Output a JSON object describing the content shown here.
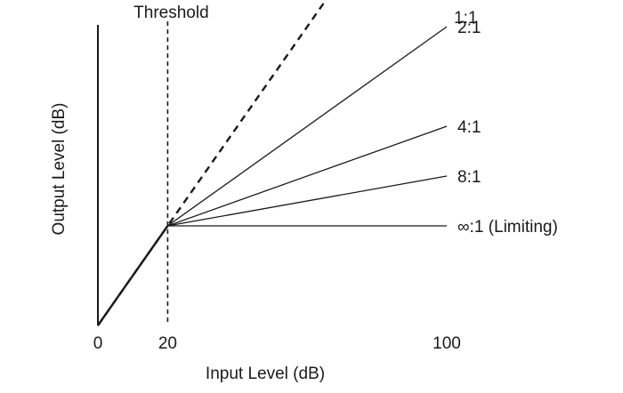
{
  "chart_data": {
    "type": "line",
    "title": "",
    "xlabel": "Input Level (dB)",
    "ylabel": "Output Level (dB)",
    "xlim": [
      0,
      100
    ],
    "ylim": [
      0,
      100
    ],
    "x_ticks": [
      {
        "value": 0,
        "label": "0"
      },
      {
        "value": 20,
        "label": "20"
      },
      {
        "value": 100,
        "label": "100"
      }
    ],
    "threshold": {
      "x": 20,
      "label": "Threshold"
    },
    "series": [
      {
        "name": "1:1",
        "x": [
          0,
          20,
          100
        ],
        "y": [
          0,
          20,
          100
        ],
        "style": "dashed"
      },
      {
        "name": "2:1",
        "x": [
          0,
          20,
          100
        ],
        "y": [
          0,
          20,
          60
        ],
        "style": "solid"
      },
      {
        "name": "4:1",
        "x": [
          0,
          20,
          100
        ],
        "y": [
          0,
          20,
          40
        ],
        "style": "solid"
      },
      {
        "name": "8:1",
        "x": [
          0,
          20,
          100
        ],
        "y": [
          0,
          20,
          30
        ],
        "style": "solid"
      },
      {
        "name": "∞:1 (Limiting)",
        "x": [
          0,
          20,
          100
        ],
        "y": [
          0,
          20,
          20
        ],
        "style": "solid"
      }
    ],
    "grid": false,
    "colors": {
      "line": "#1a1a1a",
      "background": "#ffffff"
    }
  }
}
